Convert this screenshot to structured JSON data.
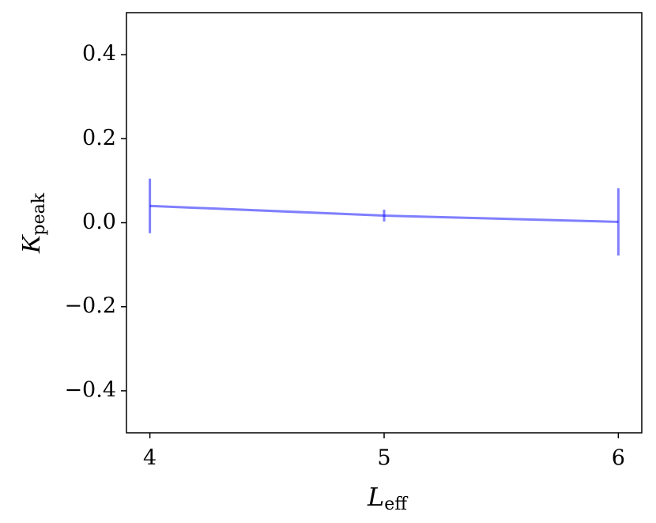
{
  "chart_data": {
    "type": "errorbar_line",
    "x": [
      4,
      5,
      6
    ],
    "series": [
      {
        "color": "#0000ff",
        "alpha": 0.5,
        "values": [
          0.04,
          0.017,
          0.002
        ],
        "errors": [
          0.065,
          0.014,
          0.08
        ]
      }
    ],
    "xlim": [
      3.9,
      6.1
    ],
    "xticks": [
      4,
      5,
      6
    ],
    "ylim": [
      -0.5,
      0.5
    ],
    "yticks": [
      {
        "value": -0.4,
        "label": "−0.4"
      },
      {
        "value": -0.2,
        "label": "−0.2"
      },
      {
        "value": 0,
        "label": "0.0"
      },
      0.2,
      0.4
    ],
    "x_label": "L",
    "x_label_sub": "eff",
    "y_label": "K",
    "y_label_sub": "peak"
  }
}
